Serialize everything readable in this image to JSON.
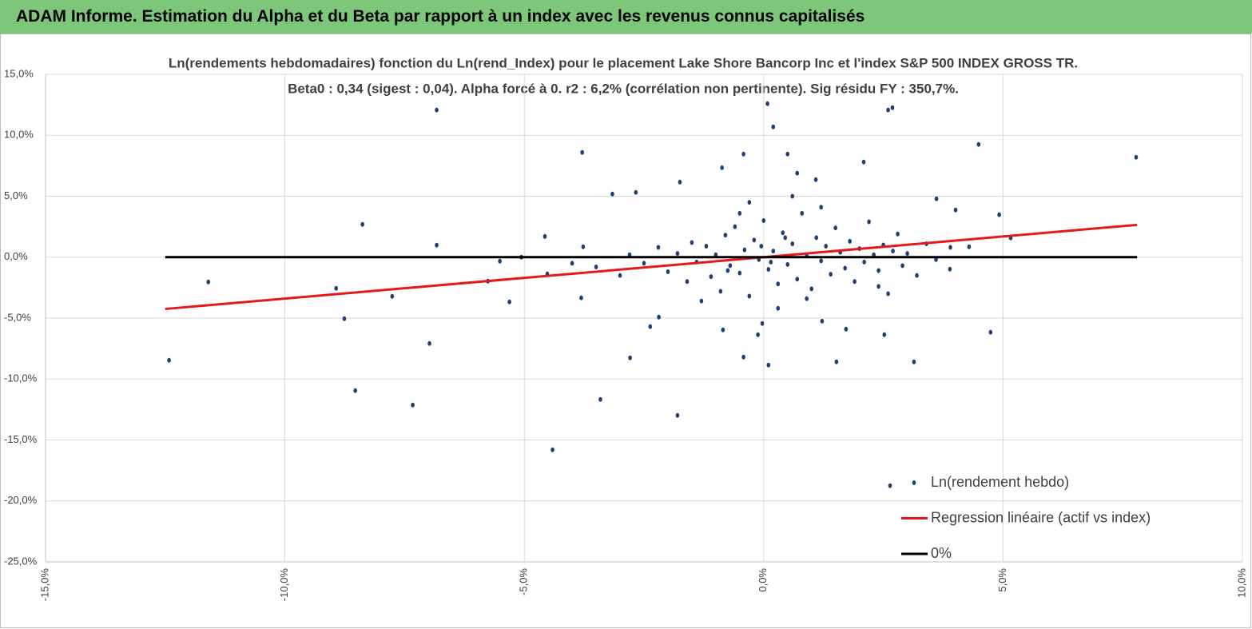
{
  "header": {
    "title": "ADAM Informe. Estimation du Alpha et du Beta par rapport à un index avec les revenus connus capitalisés"
  },
  "chart_data": {
    "type": "scatter",
    "title": "Ln(rendements hebdomadaires) fonction du Ln(rend_Index) pour le placement Lake Shore Bancorp Inc et l'index S&P 500 INDEX GROSS TR.",
    "subtitle": "Beta0 : 0,34 (sigest : 0,04).  Alpha forcé à 0. r2 : 6,2% (corrélation non pertinente). Sig résidu FY : 350,7%.",
    "xlim": [
      -15,
      10
    ],
    "ylim": [
      -25,
      15
    ],
    "xticks": [
      {
        "value": -15,
        "label": "-15,0%"
      },
      {
        "value": -10,
        "label": "-10,0%"
      },
      {
        "value": -5,
        "label": "-5,0%"
      },
      {
        "value": 0,
        "label": "0,0%"
      },
      {
        "value": 5,
        "label": "5,0%"
      },
      {
        "value": 10,
        "label": "10,0%"
      }
    ],
    "yticks": [
      {
        "value": 15,
        "label": "15,0%"
      },
      {
        "value": 10,
        "label": "10,0%"
      },
      {
        "value": 5,
        "label": "5,0%"
      },
      {
        "value": 0,
        "label": "0,0%"
      },
      {
        "value": -5,
        "label": "-5,0%"
      },
      {
        "value": -10,
        "label": "-10,0%"
      },
      {
        "value": -15,
        "label": "-15,0%"
      },
      {
        "value": -20,
        "label": "-20,0%"
      },
      {
        "value": -25,
        "label": "-25,0%"
      }
    ],
    "grid": true,
    "legend": "bottom-right",
    "series": [
      {
        "name": "Ln(rendement hebdo)",
        "type": "scatter",
        "color": "#203f74",
        "x": [
          -12.42,
          -11.6,
          -8.38,
          -8.93,
          -8.76,
          -8.53,
          -7.76,
          -7.33,
          -6.98,
          -6.83,
          -6.83,
          -4.41,
          -3.79,
          -3.41,
          -3.16,
          -2.67,
          -2.79,
          -1.8,
          -1.75,
          0.08,
          0.2,
          2.6,
          2.69,
          2.64,
          4.49,
          7.78,
          4.92,
          5.16,
          4.74,
          3.14,
          1.52,
          0.1,
          -0.42,
          -0.85,
          2.52,
          2.09,
          -0.87,
          -0.42,
          0.5,
          -3.81,
          -5.06,
          -5.31,
          -5.76,
          -5.51,
          -4.57,
          -4.52,
          -3.77,
          -2.19,
          -2.37,
          -0.03,
          -0.12,
          1.22,
          1.72,
          1.09,
          0.7,
          3.61,
          4.01,
          4.29,
          3.89,
          -2.5,
          -2.2,
          -2.0,
          -1.8,
          -1.6,
          -1.5,
          -1.4,
          -1.2,
          -1.1,
          -1.0,
          -0.9,
          -0.8,
          -0.7,
          -0.6,
          -0.5,
          -0.4,
          -0.3,
          -0.2,
          -0.1,
          0.0,
          0.1,
          0.2,
          0.3,
          0.4,
          0.5,
          0.6,
          0.7,
          0.8,
          0.9,
          1.0,
          1.1,
          1.2,
          1.3,
          1.4,
          1.5,
          1.6,
          1.7,
          1.8,
          1.9,
          2.0,
          2.1,
          2.2,
          2.3,
          2.4,
          2.5,
          2.6,
          2.7,
          2.8,
          2.9,
          3.0,
          3.2,
          3.4,
          3.6,
          3.9,
          -3.0,
          -2.8,
          -3.5,
          -4.0,
          -0.3,
          0.3,
          0.6,
          -0.5,
          1.2,
          -1.3,
          0.9,
          2.4,
          -0.05,
          0.15,
          0.45,
          -0.75
        ],
        "values": [
          -8.46,
          -2.03,
          2.69,
          -2.56,
          -5.05,
          -10.95,
          -3.21,
          -12.13,
          -7.08,
          12.07,
          0.98,
          -15.8,
          8.59,
          -11.67,
          5.18,
          5.31,
          -8.26,
          -12.98,
          6.16,
          12.59,
          10.69,
          12.07,
          12.26,
          -18.75,
          9.25,
          8.2,
          3.48,
          1.57,
          -6.16,
          -8.59,
          -8.59,
          -8.85,
          -8.2,
          -5.97,
          -6.36,
          7.8,
          7.34,
          8.46,
          8.46,
          -3.34,
          0,
          -3.67,
          -1.97,
          -0.33,
          1.7,
          -1.38,
          0.85,
          -4.92,
          -5.7,
          -5.44,
          -6.36,
          -5.25,
          -5.9,
          6.36,
          6.89,
          4.79,
          3.87,
          0.85,
          -0.98,
          -0.5,
          0.8,
          -1.2,
          0.3,
          -2.0,
          1.2,
          -0.4,
          0.9,
          -1.6,
          0.2,
          -2.8,
          1.8,
          -0.7,
          2.5,
          -1.3,
          0.6,
          -3.2,
          1.4,
          -0.2,
          3.0,
          -1.0,
          0.5,
          -2.2,
          2.0,
          -0.6,
          1.1,
          -1.8,
          3.6,
          0.1,
          -2.6,
          1.6,
          -0.3,
          0.9,
          -1.4,
          2.4,
          0.4,
          -0.9,
          1.3,
          -2.0,
          0.7,
          -0.4,
          2.9,
          0.2,
          -1.1,
          1.0,
          -3.0,
          0.5,
          1.9,
          -0.7,
          0.3,
          -1.5,
          1.1,
          -0.2,
          0.8,
          -1.5,
          0.2,
          -0.8,
          -0.5,
          4.5,
          -4.2,
          5.0,
          3.6,
          4.1,
          -3.6,
          -3.4,
          -2.4,
          0.9,
          -0.4,
          1.6,
          -1.1
        ]
      },
      {
        "name": "Regression linéaire (actif vs index)",
        "type": "line",
        "color": "#e41a1a",
        "x": [
          -12.5,
          7.8
        ],
        "values": [
          -4.25,
          2.65
        ]
      },
      {
        "name": "0%",
        "type": "line",
        "color": "#000000",
        "x": [
          -12.5,
          7.8
        ],
        "values": [
          0,
          0
        ]
      }
    ]
  }
}
